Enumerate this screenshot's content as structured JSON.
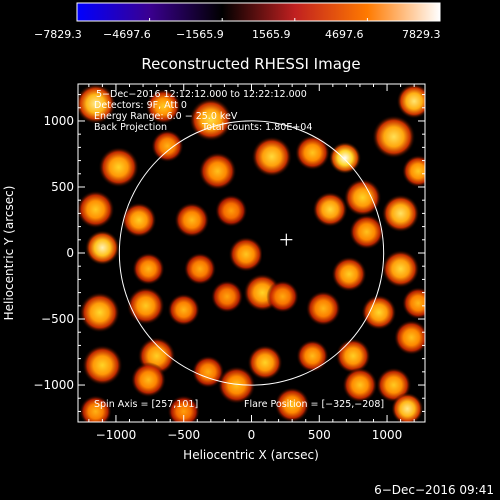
{
  "chart_data": {
    "type": "heatmap",
    "title": "Reconstructed RHESSI Image",
    "xlabel": "Heliocentric X (arcsec)",
    "ylabel": "Heliocentric Y (arcsec)",
    "xlim": [
      -1280,
      1280
    ],
    "ylim": [
      -1280,
      1280
    ],
    "x_ticks": [
      -1000,
      -500,
      0,
      500,
      1000
    ],
    "y_ticks": [
      -1000,
      -500,
      0,
      500,
      1000
    ],
    "x_tick_labels": [
      "−1000",
      "−500",
      "0",
      "500",
      "1000"
    ],
    "y_tick_labels": [
      "−1000",
      "−500",
      "0",
      "500",
      "1000"
    ],
    "colorbar": {
      "min": -7829.3,
      "max": 7829.3,
      "ticks": [
        -7829.3,
        -4697.6,
        -1565.9,
        1565.9,
        4697.6,
        7829.3
      ],
      "tick_labels": [
        "−7829.3",
        "−4697.6",
        "−1565.9",
        "1565.9",
        "4697.6",
        "7829.3"
      ],
      "stops": [
        "#0000ff",
        "#3a0090",
        "#000000",
        "#c02020",
        "#ff7a00",
        "#ffffff"
      ]
    },
    "annotations": [
      "5−Dec−2016 12:12:12.000 to 12:22:12.000",
      "Detectors: 9F, Att 0",
      "Energy Range: 6.0 − 25.0 keV",
      "Back Projection",
      "Total counts: 1.80E+04",
      "Spin Axis = [257,101]",
      "Flare Position = [−325,−208]"
    ],
    "solar_disk": {
      "center": [
        0,
        0
      ],
      "radius_arcsec": 975
    },
    "marker_plus": [
      257,
      101
    ],
    "center_mask": {
      "x": [
        75,
        450
      ],
      "y": [
        -95,
        185
      ],
      "notch": {
        "x": [
          265,
          450
        ],
        "y": [
          -95,
          0
        ]
      }
    },
    "blobs": [
      {
        "x": -1150,
        "y": 1130,
        "r": 150,
        "v": 7000
      },
      {
        "x": -650,
        "y": 1110,
        "r": 130,
        "v": 6000
      },
      {
        "x": -300,
        "y": 1010,
        "r": 160,
        "v": 6500
      },
      {
        "x": -980,
        "y": 650,
        "r": 150,
        "v": 6200
      },
      {
        "x": -620,
        "y": 810,
        "r": 120,
        "v": 5500
      },
      {
        "x": -250,
        "y": 620,
        "r": 140,
        "v": 5800
      },
      {
        "x": 150,
        "y": 730,
        "r": 150,
        "v": 6400
      },
      {
        "x": 450,
        "y": 760,
        "r": 130,
        "v": 5900
      },
      {
        "x": 690,
        "y": 720,
        "r": 120,
        "v": 7800
      },
      {
        "x": 1050,
        "y": 880,
        "r": 160,
        "v": 6600
      },
      {
        "x": 1200,
        "y": 1150,
        "r": 130,
        "v": 6800
      },
      {
        "x": -1150,
        "y": 330,
        "r": 140,
        "v": 6000
      },
      {
        "x": -1100,
        "y": 40,
        "r": 130,
        "v": 7300
      },
      {
        "x": -830,
        "y": 250,
        "r": 130,
        "v": 6100
      },
      {
        "x": -760,
        "y": -120,
        "r": 120,
        "v": 5600
      },
      {
        "x": -440,
        "y": 250,
        "r": 130,
        "v": 5700
      },
      {
        "x": -380,
        "y": -120,
        "r": 120,
        "v": 5400
      },
      {
        "x": -150,
        "y": 320,
        "r": 120,
        "v": 5100
      },
      {
        "x": -40,
        "y": -10,
        "r": 130,
        "v": 5900
      },
      {
        "x": 580,
        "y": 330,
        "r": 130,
        "v": 6400
      },
      {
        "x": 820,
        "y": 420,
        "r": 140,
        "v": 6200
      },
      {
        "x": 1100,
        "y": 300,
        "r": 140,
        "v": 6700
      },
      {
        "x": 1230,
        "y": 620,
        "r": 120,
        "v": 6000
      },
      {
        "x": 850,
        "y": 160,
        "r": 130,
        "v": 5800
      },
      {
        "x": 720,
        "y": -160,
        "r": 130,
        "v": 6100
      },
      {
        "x": 1100,
        "y": -120,
        "r": 140,
        "v": 6400
      },
      {
        "x": 1230,
        "y": -380,
        "r": 120,
        "v": 5600
      },
      {
        "x": -1120,
        "y": -450,
        "r": 150,
        "v": 6300
      },
      {
        "x": -780,
        "y": -400,
        "r": 140,
        "v": 6000
      },
      {
        "x": -500,
        "y": -430,
        "r": 120,
        "v": 5600
      },
      {
        "x": -180,
        "y": -330,
        "r": 120,
        "v": 5200
      },
      {
        "x": 80,
        "y": -300,
        "r": 140,
        "v": 6200
      },
      {
        "x": 230,
        "y": -330,
        "r": 120,
        "v": 5300
      },
      {
        "x": 530,
        "y": -420,
        "r": 130,
        "v": 5600
      },
      {
        "x": 940,
        "y": -450,
        "r": 130,
        "v": 6300
      },
      {
        "x": 1180,
        "y": -640,
        "r": 130,
        "v": 5800
      },
      {
        "x": -1100,
        "y": -850,
        "r": 150,
        "v": 6200
      },
      {
        "x": -700,
        "y": -780,
        "r": 140,
        "v": 6100
      },
      {
        "x": -760,
        "y": -960,
        "r": 130,
        "v": 5700
      },
      {
        "x": -320,
        "y": -900,
        "r": 120,
        "v": 5400
      },
      {
        "x": -110,
        "y": -1000,
        "r": 140,
        "v": 5800
      },
      {
        "x": 100,
        "y": -830,
        "r": 130,
        "v": 6200
      },
      {
        "x": 450,
        "y": -780,
        "r": 120,
        "v": 5700
      },
      {
        "x": 750,
        "y": -780,
        "r": 130,
        "v": 6100
      },
      {
        "x": 800,
        "y": -1000,
        "r": 130,
        "v": 5900
      },
      {
        "x": 1050,
        "y": -1000,
        "r": 130,
        "v": 6000
      },
      {
        "x": 1150,
        "y": -1180,
        "r": 120,
        "v": 7000
      },
      {
        "x": -1150,
        "y": -1200,
        "r": 120,
        "v": 5500
      },
      {
        "x": -500,
        "y": -1200,
        "r": 120,
        "v": 5100
      },
      {
        "x": 300,
        "y": -1150,
        "r": 130,
        "v": 5800
      }
    ]
  },
  "footer": {
    "timestamp": "6−Dec−2016 09:41"
  }
}
